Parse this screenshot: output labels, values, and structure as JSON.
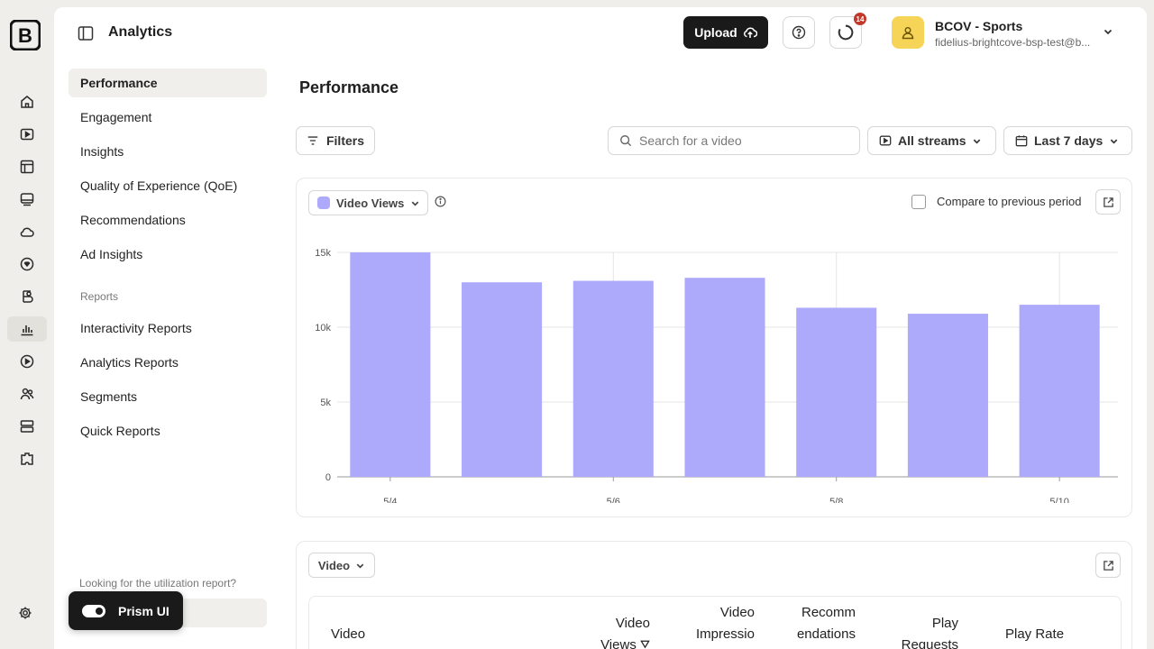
{
  "header": {
    "app_title": "Analytics",
    "upload_label": "Upload",
    "notification_count": "14",
    "account_name": "BCOV - Sports",
    "account_email": "fidelius-brightcove-bsp-test@b..."
  },
  "rail": {
    "icons": [
      "home-icon",
      "video-icon",
      "media-icon",
      "player-icon",
      "cloud-icon",
      "engage-icon",
      "brand-icon",
      "analytics-icon",
      "live-icon",
      "audience-icon",
      "storage-icon",
      "plugin-icon"
    ],
    "active": "analytics-icon"
  },
  "nav": {
    "items": [
      {
        "label": "Performance"
      },
      {
        "label": "Engagement"
      },
      {
        "label": "Insights"
      },
      {
        "label": "Quality of Experience (QoE)"
      },
      {
        "label": "Recommendations"
      },
      {
        "label": "Ad Insights"
      }
    ],
    "reports_heading": "Reports",
    "reports": [
      {
        "label": "Interactivity Reports"
      },
      {
        "label": "Analytics Reports"
      },
      {
        "label": "Segments"
      },
      {
        "label": "Quick Reports"
      }
    ],
    "utilization_text": "Looking for the utilization report?"
  },
  "page": {
    "title": "Performance",
    "filters_label": "Filters",
    "search_placeholder": "Search for a video",
    "streams_label": "All streams",
    "date_range_label": "Last 7 days"
  },
  "chart_card": {
    "metric_label": "Video Views",
    "compare_label": "Compare to previous period",
    "compare_checked": false
  },
  "chart_data": {
    "type": "bar",
    "categories": [
      "5/4",
      "5/5",
      "5/6",
      "5/7",
      "5/8",
      "5/9",
      "5/10"
    ],
    "x_tick_labels": [
      "5/4",
      "5/6",
      "5/8",
      "5/10"
    ],
    "series": [
      {
        "name": "Video Views",
        "color": "#adaafc",
        "values": [
          15000,
          13000,
          13100,
          13300,
          11300,
          10900,
          11500
        ]
      }
    ],
    "y_ticks": [
      "0",
      "5k",
      "10k",
      "15k"
    ],
    "ylim": [
      0,
      15000
    ],
    "grid": true
  },
  "table_card": {
    "group_label": "Video",
    "columns": [
      "Video",
      "Video Views",
      "Video Impressio",
      "Recomm endations",
      "Play Requests",
      "Play Rate"
    ]
  },
  "prism": {
    "label": "Prism UI",
    "enabled": true
  }
}
